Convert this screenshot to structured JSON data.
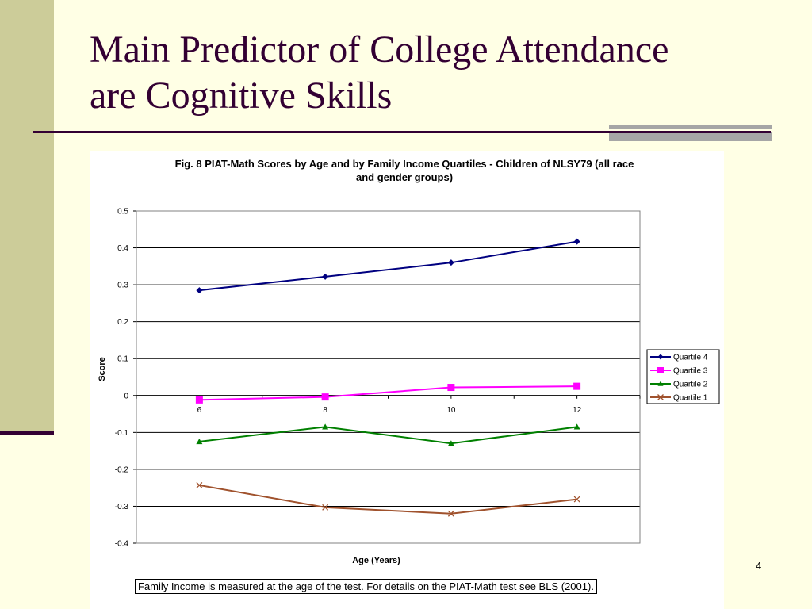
{
  "slide": {
    "title": "Main Predictor of College Attendance are Cognitive Skills",
    "page_number": "4",
    "note": "Family Income is measured at the age of the test. For details on the PIAT-Math test see BLS (2001).",
    "colors": {
      "background": "#FFFFE5",
      "accent_bar": "#CCCC99",
      "title": "#330033"
    }
  },
  "chart_data": {
    "type": "line",
    "title": "Fig. 8 PIAT-Math Scores by Age and by Family Income Quartiles - Children of NLSY79 (all race and gender groups)",
    "title_lines": [
      "Fig. 8 PIAT-Math Scores by Age and by Family Income Quartiles - Children of NLSY79 (all race",
      "and gender groups)"
    ],
    "xlabel": "Age (Years)",
    "ylabel": "Score",
    "x": [
      6,
      8,
      10,
      12
    ],
    "xlim": [
      5,
      13
    ],
    "ylim": [
      -0.4,
      0.5
    ],
    "yticks": [
      "0.5",
      "0.4",
      "0.3",
      "0.2",
      "0.1",
      "0",
      "-0.1",
      "-0.2",
      "-0.3",
      "-0.4"
    ],
    "ytick_values": [
      0.5,
      0.4,
      0.3,
      0.2,
      0.1,
      0,
      -0.1,
      -0.2,
      -0.3,
      -0.4
    ],
    "grid": true,
    "legend_position": "right",
    "series": [
      {
        "name": "Quartile 4",
        "values": [
          0.285,
          0.322,
          0.36,
          0.417
        ],
        "color": "#000080",
        "marker": "diamond"
      },
      {
        "name": "Quartile 3",
        "values": [
          -0.012,
          -0.004,
          0.022,
          0.025
        ],
        "color": "#FF00FF",
        "marker": "square"
      },
      {
        "name": "Quartile 2",
        "values": [
          -0.125,
          -0.085,
          -0.13,
          -0.085
        ],
        "color": "#008000",
        "marker": "triangle"
      },
      {
        "name": "Quartile 1",
        "values": [
          -0.243,
          -0.303,
          -0.32,
          -0.281
        ],
        "color": "#A0522D",
        "marker": "x"
      }
    ]
  }
}
